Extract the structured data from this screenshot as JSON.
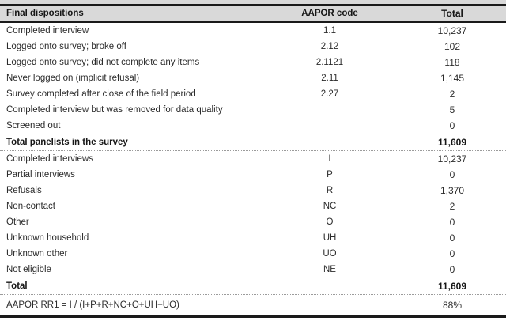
{
  "table": {
    "columns": {
      "label": "Final dispositions",
      "code": "AAPOR code",
      "total": "Total"
    },
    "sections": [
      {
        "name": "final-dispositions",
        "rows": [
          {
            "label": "Completed interview",
            "code": "1.1",
            "total": "10,237"
          },
          {
            "label": "Logged onto survey; broke off",
            "code": "2.12",
            "total": "102"
          },
          {
            "label": "Logged onto survey; did not complete any items",
            "code": "2.1121",
            "total": "118"
          },
          {
            "label": "Never logged on (implicit refusal)",
            "code": "2.11",
            "total": "1,145"
          },
          {
            "label": "Survey completed after close of the field period",
            "code": "2.27",
            "total": "2"
          },
          {
            "label": "Completed interview but was removed for data quality",
            "code": "",
            "total": "5"
          },
          {
            "label": "Screened out",
            "code": "",
            "total": "0"
          }
        ],
        "total_row": {
          "label": "Total panelists in the survey",
          "code": "",
          "total": "11,609"
        }
      },
      {
        "name": "aapor-categories",
        "rows": [
          {
            "label": "Completed interviews",
            "code": "I",
            "total": "10,237"
          },
          {
            "label": "Partial interviews",
            "code": "P",
            "total": "0"
          },
          {
            "label": "Refusals",
            "code": "R",
            "total": "1,370"
          },
          {
            "label": "Non-contact",
            "code": "NC",
            "total": "2"
          },
          {
            "label": "Other",
            "code": "O",
            "total": "0"
          },
          {
            "label": "Unknown household",
            "code": "UH",
            "total": "0"
          },
          {
            "label": "Unknown other",
            "code": "UO",
            "total": "0"
          },
          {
            "label": "Not eligible",
            "code": "NE",
            "total": "0"
          }
        ],
        "total_row": {
          "label": "Total",
          "code": "",
          "total": "11,609"
        }
      }
    ],
    "footer_row": {
      "label": "AAPOR RR1 = I / (I+P+R+NC+O+UH+UO)",
      "code": "",
      "total": "88%"
    }
  },
  "colors": {
    "header_bg": "#d9d9d9",
    "rule": "#1a1a1a",
    "dotted_rule": "#9b9b9b",
    "text": "#2b2b2b"
  }
}
